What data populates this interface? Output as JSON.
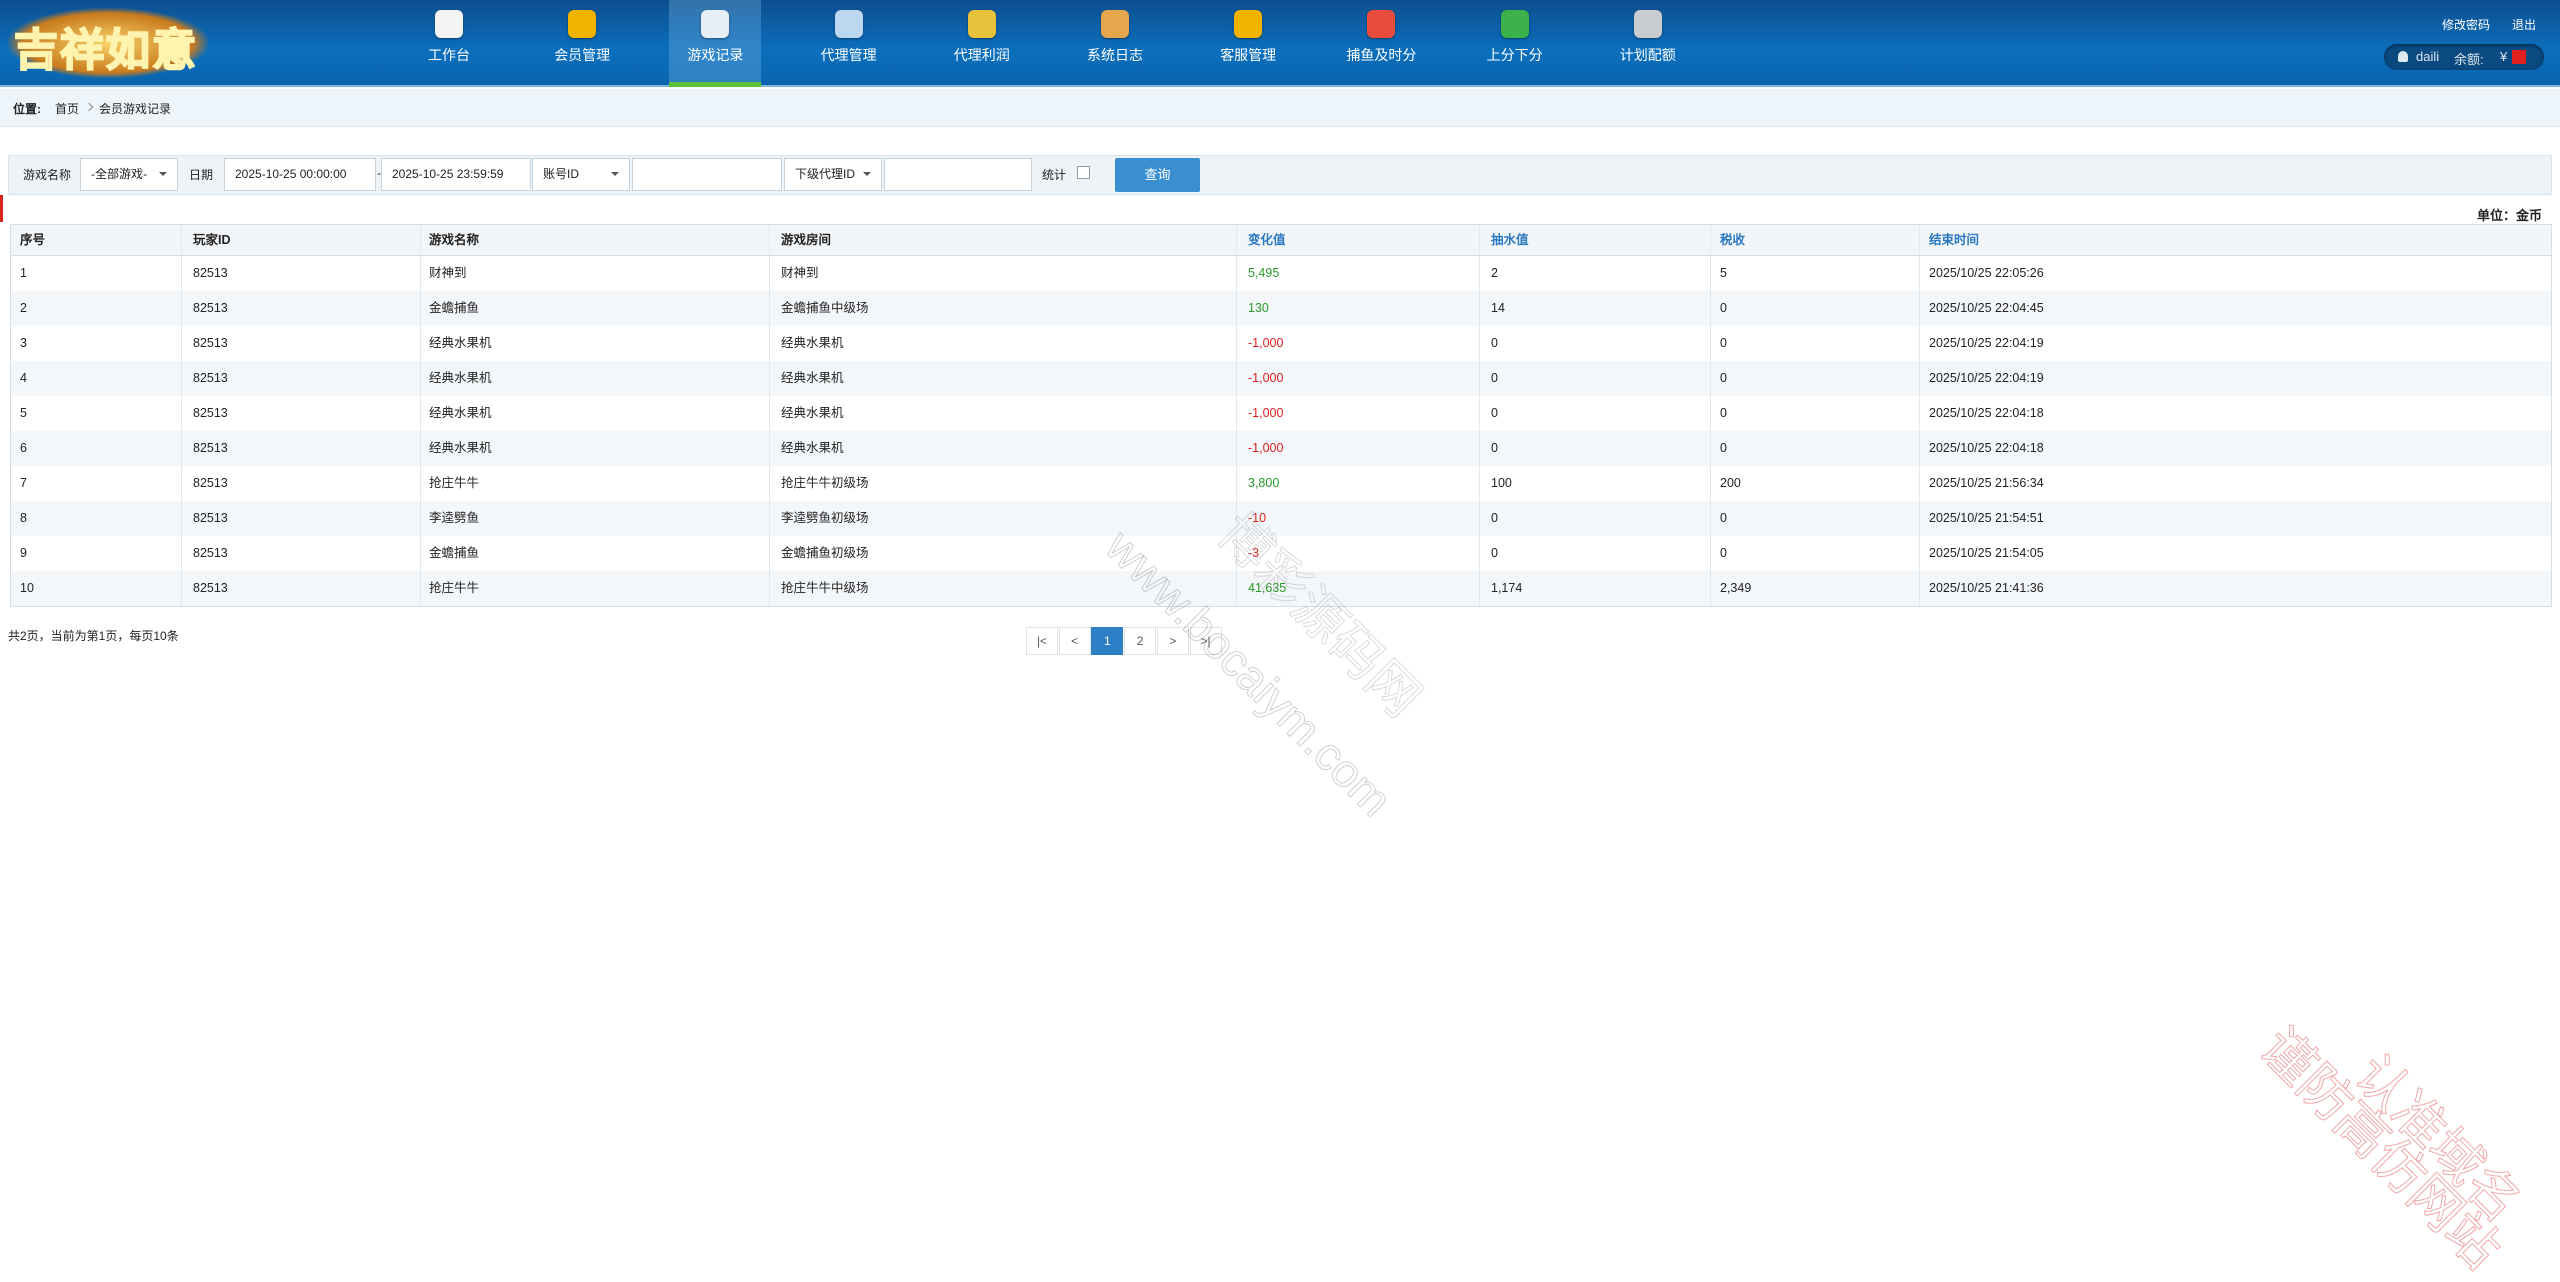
{
  "header": {
    "logo": "吉祥如意",
    "nav": [
      "工作台",
      "会员管理",
      "游戏记录",
      "代理管理",
      "代理利润",
      "系统日志",
      "客服管理",
      "捕鱼及时分",
      "上分下分",
      "计划配额"
    ],
    "links": [
      "修改密码",
      "退出"
    ],
    "user": "daili",
    "balance_label": "余额:",
    "currency": "¥"
  },
  "breadcrumb": {
    "label": "位置:",
    "items": [
      "首页",
      "会员游戏记录"
    ]
  },
  "filters": {
    "game_label": "游戏名称",
    "game_select": "-全部游戏-",
    "date_label": "日期",
    "start": "2025-10-25 00:00:00",
    "separator": "-",
    "end": "2025-10-25 23:59:59",
    "account_select": "账号ID",
    "agent_select": "下级代理ID",
    "stat_label": "统计",
    "button": "查询"
  },
  "unit": "单位：金币",
  "table": {
    "columns": [
      "序号",
      "玩家ID",
      "游戏名称",
      "游戏房间",
      "变化值",
      "抽水值",
      "税收",
      "结束时间"
    ],
    "rows": [
      [
        "1",
        "82513",
        "财神到",
        "财神到",
        "5,495",
        "2",
        "5",
        "2025/10/25 22:05:26"
      ],
      [
        "2",
        "82513",
        "金蟾捕鱼",
        "金蟾捕鱼中级场",
        "130",
        "14",
        "0",
        "2025/10/25 22:04:45"
      ],
      [
        "3",
        "82513",
        "经典水果机",
        "经典水果机",
        "-1,000",
        "0",
        "0",
        "2025/10/25 22:04:19"
      ],
      [
        "4",
        "82513",
        "经典水果机",
        "经典水果机",
        "-1,000",
        "0",
        "0",
        "2025/10/25 22:04:19"
      ],
      [
        "5",
        "82513",
        "经典水果机",
        "经典水果机",
        "-1,000",
        "0",
        "0",
        "2025/10/25 22:04:18"
      ],
      [
        "6",
        "82513",
        "经典水果机",
        "经典水果机",
        "-1,000",
        "0",
        "0",
        "2025/10/25 22:04:18"
      ],
      [
        "7",
        "82513",
        "抢庄牛牛",
        "抢庄牛牛初级场",
        "3,800",
        "100",
        "200",
        "2025/10/25 21:56:34"
      ],
      [
        "8",
        "82513",
        "李逵劈鱼",
        "李逵劈鱼初级场",
        "-10",
        "0",
        "0",
        "2025/10/25 21:54:51"
      ],
      [
        "9",
        "82513",
        "金蟾捕鱼",
        "金蟾捕鱼初级场",
        "-3",
        "0",
        "0",
        "2025/10/25 21:54:05"
      ],
      [
        "10",
        "82513",
        "抢庄牛牛",
        "抢庄牛牛中级场",
        "41,635",
        "1,174",
        "2,349",
        "2025/10/25 21:41:36"
      ]
    ]
  },
  "pagination": {
    "info": "共2页，当前为第1页，每页10条",
    "buttons": [
      "|<",
      "<",
      "1",
      "2",
      ">",
      ">|"
    ]
  },
  "watermarks": [
    "www.bocaiym.com",
    "博彩源码网",
    "认准域名",
    "谨防高仿网站"
  ]
}
